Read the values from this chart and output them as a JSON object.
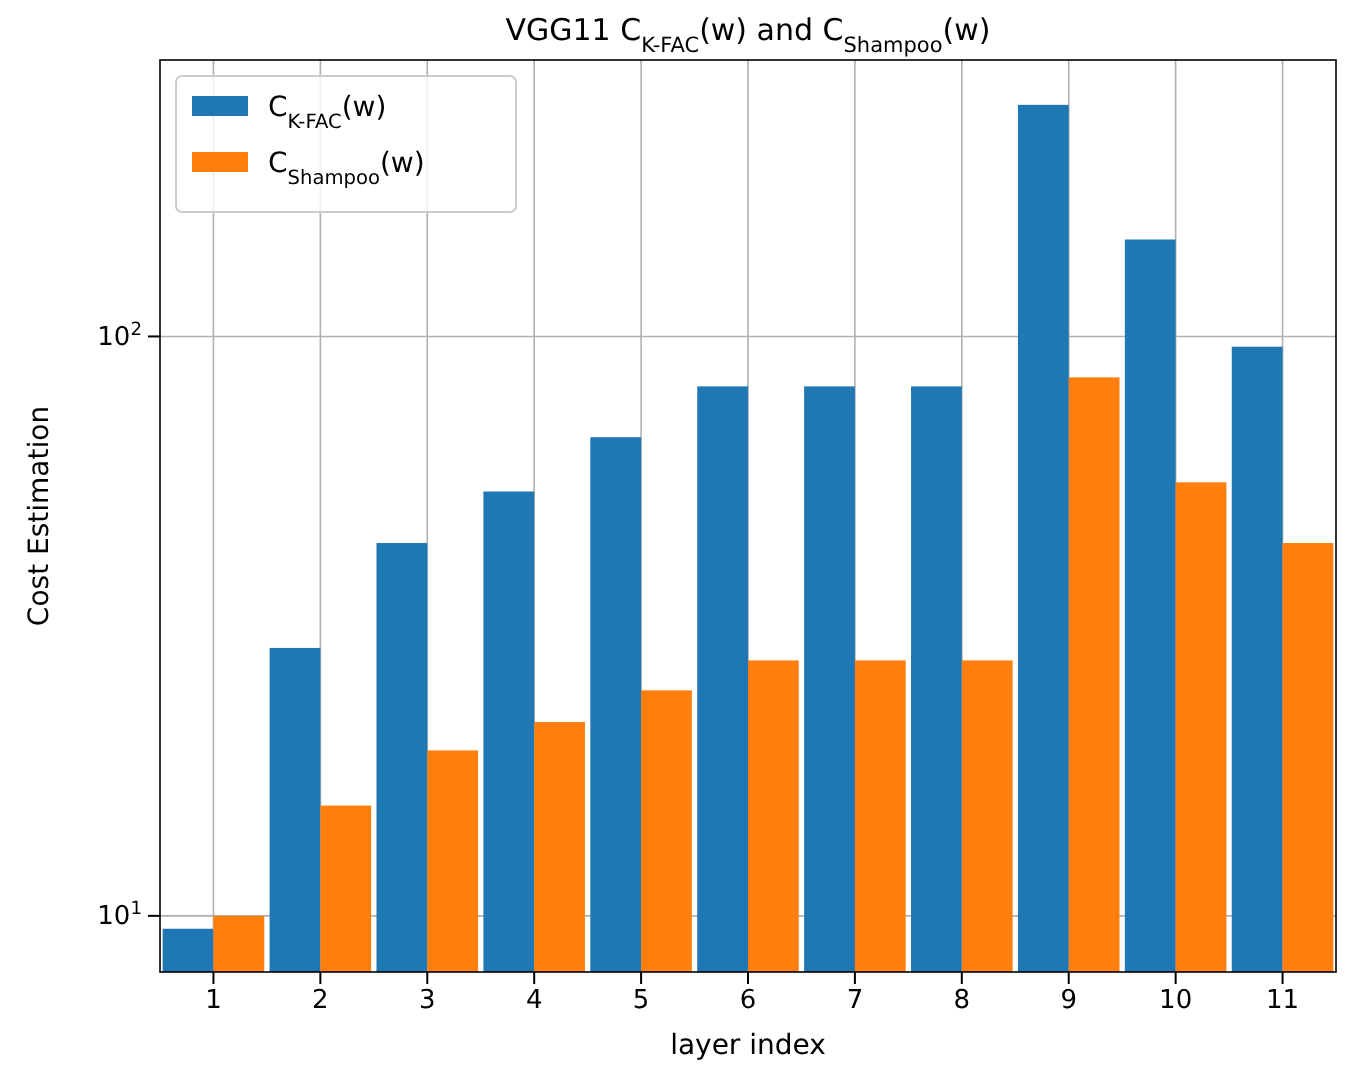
{
  "chart_data": {
    "type": "bar",
    "title": "VGG11 C$_{K-FAC}$(w) and C$_{Shampoo}$(w)",
    "xlabel": "layer index",
    "ylabel": "Cost Estimation",
    "categories": [
      "1",
      "2",
      "3",
      "4",
      "5",
      "6",
      "7",
      "8",
      "9",
      "10",
      "11"
    ],
    "series": [
      {
        "name": "C$_{K-FAC}$(w)",
        "color": "#1f77b4",
        "values": [
          9.5,
          29,
          44,
          54,
          67,
          82,
          82,
          82,
          251,
          147,
          96
        ]
      },
      {
        "name": "C$_{Shampoo}$(w)",
        "color": "#ff7f0e",
        "values": [
          10,
          15.5,
          19.3,
          21.6,
          24.5,
          27.6,
          27.6,
          27.6,
          85,
          56,
          44
        ]
      }
    ],
    "log": true,
    "ylim": [
      8,
      300
    ],
    "yticks": [
      {
        "value": 10,
        "label": "10$^{1}$"
      },
      {
        "value": 100,
        "label": "10$^{2}$"
      }
    ],
    "grid": true,
    "legend": "top left"
  }
}
